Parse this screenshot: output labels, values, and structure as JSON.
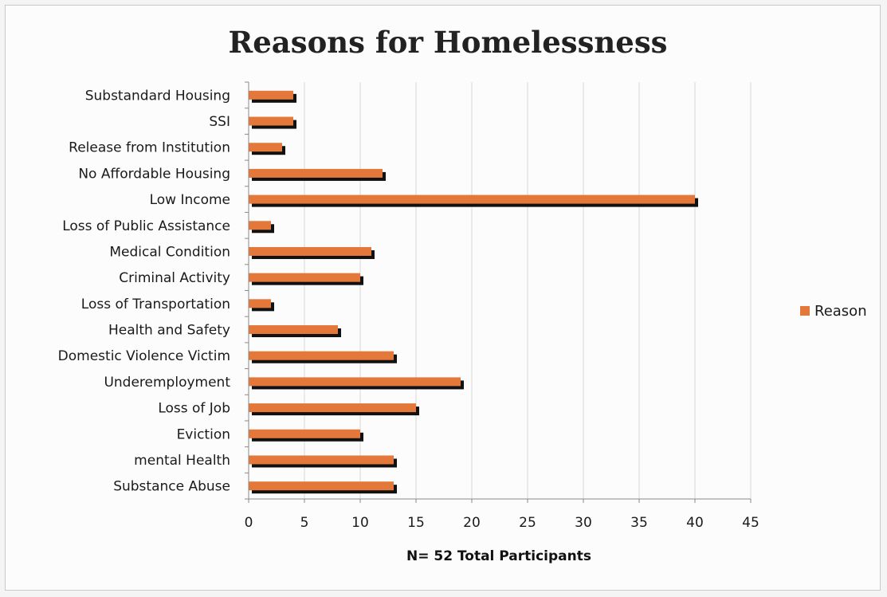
{
  "chart_data": {
    "type": "bar",
    "orientation": "horizontal",
    "title": "Reasons for Homelessness",
    "xlabel": "N= 52 Total Participants",
    "ylabel": "",
    "xlim": [
      0,
      45
    ],
    "x_ticks": [
      0,
      5,
      10,
      15,
      20,
      25,
      30,
      35,
      40,
      45
    ],
    "grid": true,
    "legend_position": "right",
    "categories": [
      "Substandard Housing",
      "SSI",
      "Release from Institution",
      "No Affordable Housing",
      "Low Income",
      "Loss of Public Assistance",
      "Medical Condition",
      "Criminal Activity",
      "Loss of Transportation",
      "Health and Safety",
      "Domestic Violence Victim",
      "Underemployment",
      "Loss of Job",
      "Eviction",
      "mental Health",
      "Substance Abuse"
    ],
    "series": [
      {
        "name": "Reason",
        "values": [
          4,
          4,
          3,
          12,
          40,
          2,
          11,
          10,
          2,
          8,
          13,
          19,
          15,
          10,
          13,
          13
        ]
      }
    ],
    "colors": {
      "bar": "#e4773a",
      "bar_shadow": "#111111",
      "grid": "#d8d8d8",
      "axis": "#8a8a8a"
    }
  }
}
